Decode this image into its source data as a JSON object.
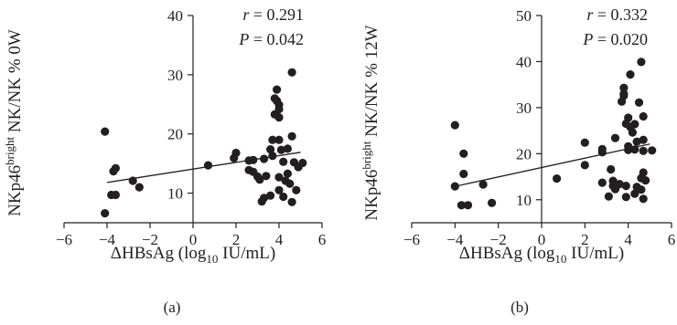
{
  "chart_data": [
    {
      "type": "scatter",
      "panel_label": "(a)",
      "xlabel": "ΔHBsAg (log10 IU/mL)",
      "ylabel": "NKp46bright NK/NK % 0W",
      "xlabel_parts": {
        "prefix": "ΔHBsAg (log",
        "sub": "10",
        "suffix": " IU/mL)"
      },
      "ylabel_parts": {
        "prefix": "NKp46",
        "sup": "bright",
        "suffix": " NK/NK % 0W"
      },
      "xlim": [
        -6,
        6
      ],
      "ylim": [
        5,
        40
      ],
      "xticks": [
        "−6",
        "−4",
        "−2",
        "0",
        "2",
        "4",
        "6"
      ],
      "yticks": [
        "10",
        "20",
        "30",
        "40"
      ],
      "stat_r": {
        "sym": "r",
        "text": " = 0.291"
      },
      "stat_p": {
        "sym": "P",
        "text": " = 0.042"
      },
      "regression": {
        "x": [
          -4.0,
          5.0
        ],
        "y": [
          11.8,
          16.9
        ]
      },
      "points": [
        [
          -4.1,
          20.4
        ],
        [
          -4.1,
          6.6
        ],
        [
          -3.7,
          13.7
        ],
        [
          -3.6,
          14.2
        ],
        [
          -3.8,
          9.7
        ],
        [
          -3.6,
          9.7
        ],
        [
          -2.8,
          12.1
        ],
        [
          -2.5,
          11.0
        ],
        [
          0.7,
          14.7
        ],
        [
          1.9,
          15.9
        ],
        [
          2.0,
          16.8
        ],
        [
          2.6,
          15.5
        ],
        [
          2.6,
          13.9
        ],
        [
          2.8,
          13.6
        ],
        [
          2.8,
          15.6
        ],
        [
          3.0,
          12.8
        ],
        [
          3.1,
          12.3
        ],
        [
          3.2,
          8.6
        ],
        [
          3.3,
          15.8
        ],
        [
          3.3,
          9.2
        ],
        [
          3.4,
          12.9
        ],
        [
          3.6,
          9.6
        ],
        [
          3.6,
          17.4
        ],
        [
          3.7,
          16.3
        ],
        [
          3.7,
          19.0
        ],
        [
          3.8,
          23.3
        ],
        [
          3.8,
          26.0
        ],
        [
          3.9,
          27.5
        ],
        [
          3.9,
          25.6
        ],
        [
          4.0,
          24.9
        ],
        [
          4.0,
          24.2
        ],
        [
          4.0,
          22.8
        ],
        [
          4.0,
          19.0
        ],
        [
          4.0,
          12.7
        ],
        [
          4.0,
          10.5
        ],
        [
          4.1,
          17.3
        ],
        [
          4.2,
          15.3
        ],
        [
          4.3,
          12.1
        ],
        [
          4.2,
          9.4
        ],
        [
          4.4,
          13.3
        ],
        [
          4.4,
          17.5
        ],
        [
          4.5,
          11.6
        ],
        [
          4.6,
          30.4
        ],
        [
          4.6,
          8.5
        ],
        [
          4.6,
          19.6
        ],
        [
          4.7,
          15.2
        ],
        [
          4.8,
          10.5
        ],
        [
          4.9,
          14.4
        ],
        [
          5.1,
          15.1
        ]
      ]
    },
    {
      "type": "scatter",
      "panel_label": "(b)",
      "xlabel": "ΔHBsAg (log10 IU/mL)",
      "ylabel": "NKp46bright NK/NK % 12W",
      "xlabel_parts": {
        "prefix": "ΔHBsAg (log",
        "sub": "10",
        "suffix": " IU/mL)"
      },
      "ylabel_parts": {
        "prefix": "NKp46",
        "sup": "bright",
        "suffix": " NK/NK % 12W"
      },
      "xlim": [
        -6,
        6
      ],
      "ylim": [
        5,
        50
      ],
      "xticks": [
        "−6",
        "−4",
        "−2",
        "0",
        "2",
        "4",
        "6"
      ],
      "yticks": [
        "10",
        "20",
        "30",
        "40",
        "50"
      ],
      "stat_r": {
        "sym": "r",
        "text": " = 0.332"
      },
      "stat_p": {
        "sym": "P",
        "text": " = 0.020"
      },
      "regression": {
        "x": [
          -4.0,
          5.0
        ],
        "y": [
          12.9,
          22.1
        ]
      },
      "points": [
        [
          -4.0,
          26.2
        ],
        [
          -4.0,
          12.9
        ],
        [
          -3.6,
          20.0
        ],
        [
          -3.6,
          15.6
        ],
        [
          -3.7,
          8.8
        ],
        [
          -3.4,
          8.8
        ],
        [
          -2.7,
          13.3
        ],
        [
          -2.3,
          9.3
        ],
        [
          0.7,
          14.6
        ],
        [
          2.0,
          22.4
        ],
        [
          2.0,
          17.5
        ],
        [
          2.8,
          21.0
        ],
        [
          2.8,
          20.3
        ],
        [
          2.8,
          13.7
        ],
        [
          3.1,
          10.7
        ],
        [
          3.2,
          16.6
        ],
        [
          3.3,
          14.1
        ],
        [
          3.4,
          23.4
        ],
        [
          3.3,
          13.0
        ],
        [
          3.4,
          12.3
        ],
        [
          3.6,
          13.4
        ],
        [
          3.7,
          31.3
        ],
        [
          3.8,
          33.0
        ],
        [
          3.8,
          34.3
        ],
        [
          3.8,
          32.6
        ],
        [
          3.9,
          26.5
        ],
        [
          3.9,
          13.0
        ],
        [
          3.9,
          10.6
        ],
        [
          4.0,
          27.8
        ],
        [
          4.0,
          20.8
        ],
        [
          4.0,
          21.6
        ],
        [
          4.1,
          37.2
        ],
        [
          4.1,
          25.8
        ],
        [
          4.2,
          24.6
        ],
        [
          4.3,
          26.4
        ],
        [
          4.3,
          20.9
        ],
        [
          4.3,
          11.3
        ],
        [
          4.4,
          22.6
        ],
        [
          4.4,
          12.8
        ],
        [
          4.6,
          39.9
        ],
        [
          4.6,
          14.7
        ],
        [
          4.6,
          12.2
        ],
        [
          4.7,
          28.1
        ],
        [
          4.7,
          23.0
        ],
        [
          4.7,
          20.6
        ],
        [
          4.7,
          15.9
        ],
        [
          4.7,
          10.2
        ],
        [
          4.8,
          14.2
        ],
        [
          5.1,
          20.7
        ],
        [
          4.5,
          31.1
        ]
      ]
    }
  ]
}
